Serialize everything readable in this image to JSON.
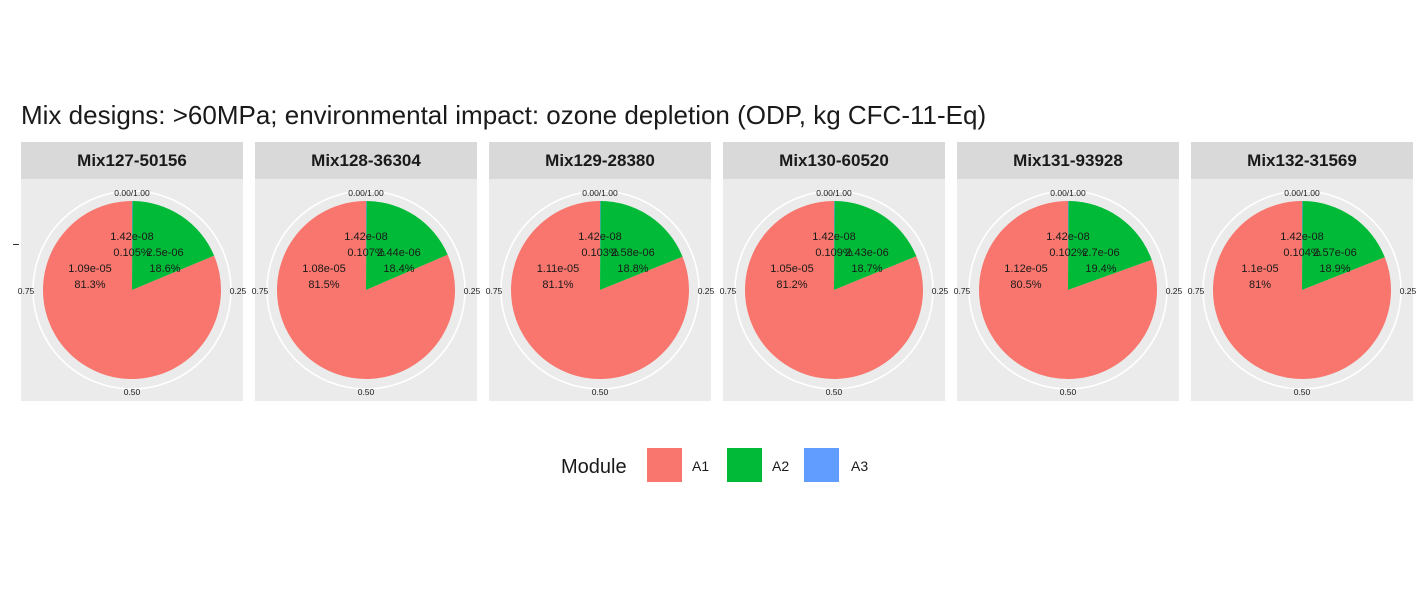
{
  "chart_data": {
    "type": "pie",
    "title": "Mix designs: >60MPa; environmental impact: ozone depletion (ODP, kg CFC-11-Eq)",
    "angular_ticks": [
      "0.00/1.00",
      "0.25",
      "0.50",
      "0.75"
    ],
    "legend": {
      "title": "Module",
      "placement": "bottom",
      "entries": [
        {
          "name": "A1",
          "color": "#F8766D"
        },
        {
          "name": "A2",
          "color": "#00BA38"
        },
        {
          "name": "A3",
          "color": "#619CFF"
        }
      ]
    },
    "panels": [
      {
        "title": "Mix127-50156",
        "slices": [
          {
            "module": "A3",
            "value_label": "1.42e-08",
            "pct_label": "0.105%",
            "fraction": 0.00105
          },
          {
            "module": "A2",
            "value_label": "2.5e-06",
            "pct_label": "18.6%",
            "fraction": 0.186
          },
          {
            "module": "A1",
            "value_label": "1.09e-05",
            "pct_label": "81.3%",
            "fraction": 0.813
          }
        ]
      },
      {
        "title": "Mix128-36304",
        "slices": [
          {
            "module": "A3",
            "value_label": "1.42e-08",
            "pct_label": "0.107%",
            "fraction": 0.00107
          },
          {
            "module": "A2",
            "value_label": "2.44e-06",
            "pct_label": "18.4%",
            "fraction": 0.184
          },
          {
            "module": "A1",
            "value_label": "1.08e-05",
            "pct_label": "81.5%",
            "fraction": 0.815
          }
        ]
      },
      {
        "title": "Mix129-28380",
        "slices": [
          {
            "module": "A3",
            "value_label": "1.42e-08",
            "pct_label": "0.103%",
            "fraction": 0.00103
          },
          {
            "module": "A2",
            "value_label": "2.58e-06",
            "pct_label": "18.8%",
            "fraction": 0.188
          },
          {
            "module": "A1",
            "value_label": "1.11e-05",
            "pct_label": "81.1%",
            "fraction": 0.811
          }
        ]
      },
      {
        "title": "Mix130-60520",
        "slices": [
          {
            "module": "A3",
            "value_label": "1.42e-08",
            "pct_label": "0.109%",
            "fraction": 0.00109
          },
          {
            "module": "A2",
            "value_label": "2.43e-06",
            "pct_label": "18.7%",
            "fraction": 0.187
          },
          {
            "module": "A1",
            "value_label": "1.05e-05",
            "pct_label": "81.2%",
            "fraction": 0.812
          }
        ]
      },
      {
        "title": "Mix131-93928",
        "slices": [
          {
            "module": "A3",
            "value_label": "1.42e-08",
            "pct_label": "0.102%",
            "fraction": 0.00102
          },
          {
            "module": "A2",
            "value_label": "2.7e-06",
            "pct_label": "19.4%",
            "fraction": 0.194
          },
          {
            "module": "A1",
            "value_label": "1.12e-05",
            "pct_label": "80.5%",
            "fraction": 0.805
          }
        ]
      },
      {
        "title": "Mix132-31569",
        "slices": [
          {
            "module": "A3",
            "value_label": "1.42e-08",
            "pct_label": "0.104%",
            "fraction": 0.00104
          },
          {
            "module": "A2",
            "value_label": "2.57e-06",
            "pct_label": "18.9%",
            "fraction": 0.189
          },
          {
            "module": "A1",
            "value_label": "1.1e-05",
            "pct_label": "81%",
            "fraction": 0.81
          }
        ]
      }
    ]
  }
}
